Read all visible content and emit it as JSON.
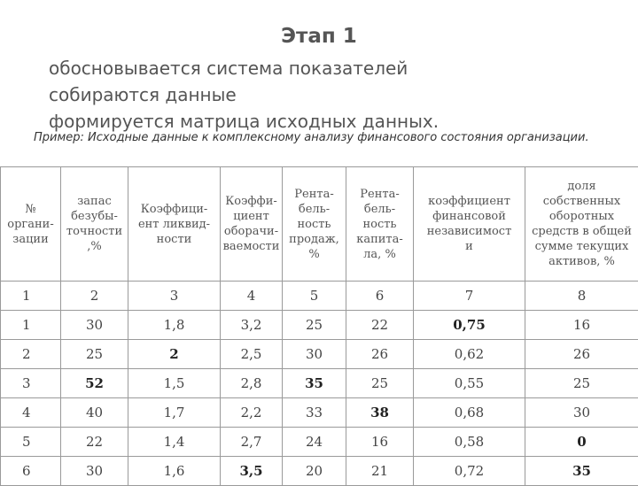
{
  "title": "Этап 1",
  "bullets": [
    "обосновывается система показателей",
    "собираются данные",
    "формируется матрица исходных данных."
  ],
  "example": "Пример: Исходные данные к комплексному анализу финансового состояния организации.",
  "table": {
    "headers": [
      "№\nоргани-\nзации",
      "запас\nбезубы-\nточности\n,%",
      "Коэффици-\nент ликвид-\nности",
      "Коэффи-\nциент\nоборачи-\nваемости",
      "Рента-\nбель-\nность\nпродаж,\n%",
      "Рента-\nбель-\nность\nкапита-\nла, %",
      "коэффициент\nфинансовой\nнезависимост\nи",
      "доля\nсобственных\nоборотных\nсредств в общей\nсумме текущих\nактивов, %"
    ],
    "column_numbers": [
      "1",
      "2",
      "3",
      "4",
      "5",
      "6",
      "7",
      "8"
    ],
    "rows": [
      [
        "1",
        "30",
        "1,8",
        "3,2",
        "25",
        "22",
        "0,75",
        "16"
      ],
      [
        "2",
        "25",
        "2",
        "2,5",
        "30",
        "26",
        "0,62",
        "26"
      ],
      [
        "3",
        "52",
        "1,5",
        "2,8",
        "35",
        "25",
        "0,55",
        "25"
      ],
      [
        "4",
        "40",
        "1,7",
        "2,2",
        "33",
        "38",
        "0,68",
        "30"
      ],
      [
        "5",
        "22",
        "1,4",
        "2,7",
        "24",
        "16",
        "0,58",
        "0"
      ],
      [
        "6",
        "30",
        "1,6",
        "3,5",
        "20",
        "21",
        "0,72",
        "35"
      ]
    ]
  }
}
